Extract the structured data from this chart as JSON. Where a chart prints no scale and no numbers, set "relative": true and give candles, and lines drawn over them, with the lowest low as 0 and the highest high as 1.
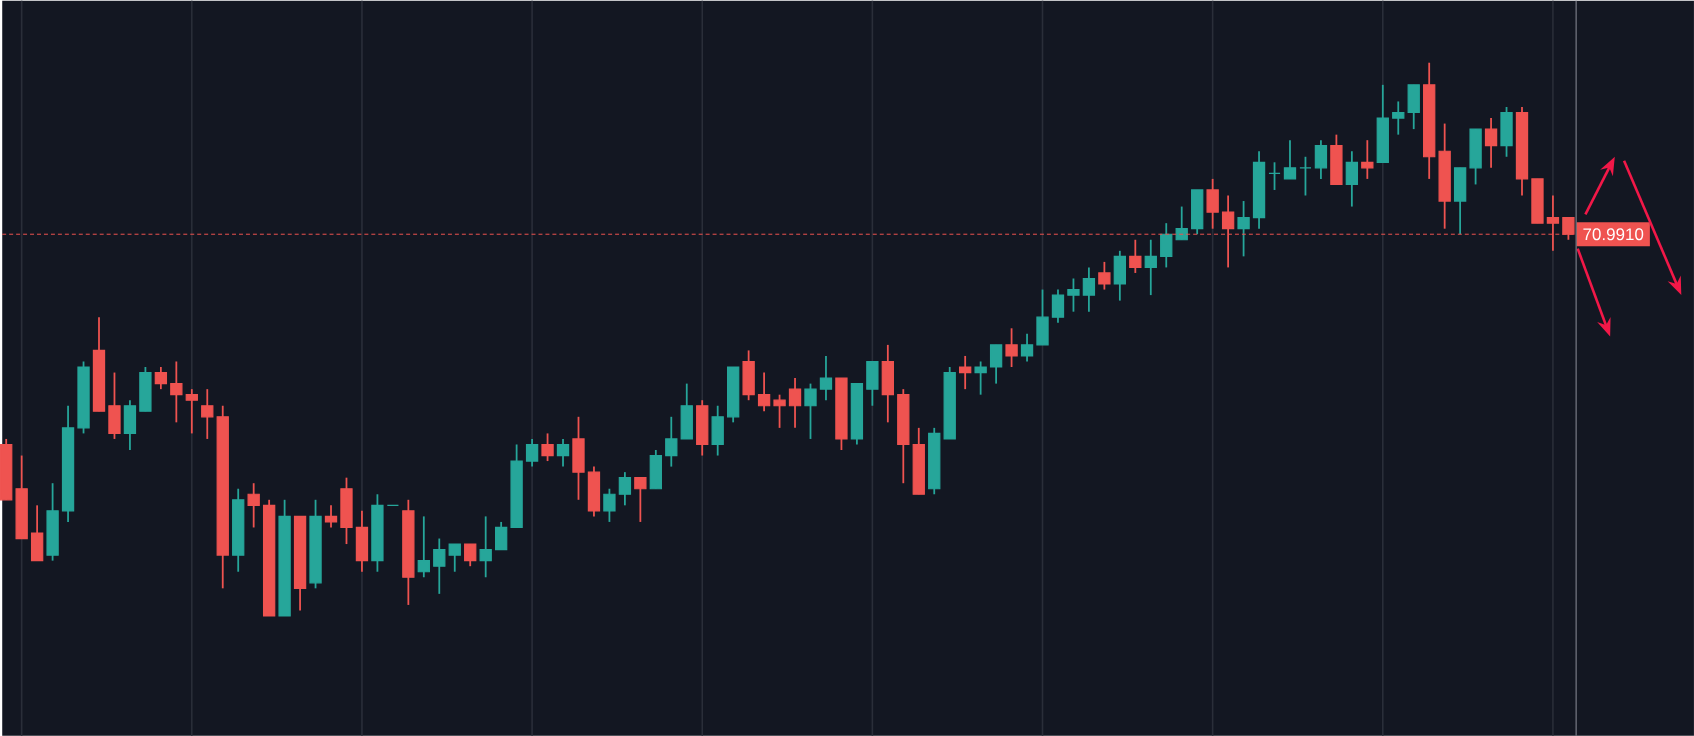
{
  "chart_data": {
    "type": "candlestick",
    "relative": true,
    "grid": "x",
    "categories": [
      null,
      null,
      null,
      null,
      null,
      null,
      null,
      null,
      null,
      null,
      null,
      null,
      null,
      null,
      null,
      null,
      null,
      null,
      null,
      null,
      null,
      null,
      null,
      null,
      null,
      null,
      null,
      null,
      null,
      null,
      null,
      null,
      null,
      null,
      null,
      null,
      null,
      null,
      null,
      null,
      null,
      null,
      null,
      null,
      null,
      null,
      null,
      null,
      null,
      null,
      null,
      null,
      null,
      null,
      null,
      null,
      null,
      null,
      null,
      null,
      null,
      null,
      null,
      null,
      null,
      null,
      null,
      null,
      null,
      null,
      null,
      null,
      null,
      null,
      null,
      null,
      null,
      null,
      null,
      null,
      null,
      null,
      null,
      null,
      null,
      null,
      null,
      null,
      null,
      null,
      null,
      null,
      null,
      null,
      null,
      null,
      null,
      null,
      null,
      null,
      null,
      null
    ],
    "ohlc": [
      [
        0.31,
        0.32,
        0.21,
        0.21
      ],
      [
        0.23,
        0.29,
        0.14,
        0.14
      ],
      [
        0.15,
        0.2,
        0.1,
        0.1
      ],
      [
        0.11,
        0.24,
        0.1,
        0.19
      ],
      [
        0.19,
        0.38,
        0.17,
        0.34
      ],
      [
        0.34,
        0.46,
        0.33,
        0.45
      ],
      [
        0.48,
        0.54,
        0.37,
        0.37
      ],
      [
        0.38,
        0.44,
        0.32,
        0.33
      ],
      [
        0.33,
        0.39,
        0.3,
        0.38
      ],
      [
        0.37,
        0.45,
        0.37,
        0.44
      ],
      [
        0.44,
        0.45,
        0.41,
        0.42
      ],
      [
        0.42,
        0.46,
        0.35,
        0.4
      ],
      [
        0.4,
        0.41,
        0.33,
        0.39
      ],
      [
        0.38,
        0.41,
        0.32,
        0.36
      ],
      [
        0.36,
        0.38,
        0.05,
        0.11
      ],
      [
        0.11,
        0.23,
        0.08,
        0.21
      ],
      [
        0.22,
        0.24,
        0.16,
        0.2
      ],
      [
        0.2,
        0.21,
        0,
        0
      ],
      [
        0.0,
        0.21,
        0,
        0.18
      ],
      [
        0.18,
        0.18,
        0.01,
        0.05
      ],
      [
        0.06,
        0.21,
        0.05,
        0.18
      ],
      [
        0.18,
        0.2,
        0.16,
        0.17
      ],
      [
        0.23,
        0.25,
        0.13,
        0.16
      ],
      [
        0.16,
        0.19,
        0.08,
        0.1
      ],
      [
        0.1,
        0.22,
        0.08,
        0.2
      ],
      [
        0.2,
        0.2,
        0.2,
        0.2
      ],
      [
        0.19,
        0.21,
        0.02,
        0.07
      ],
      [
        0.08,
        0.18,
        0.07,
        0.1
      ],
      [
        0.09,
        0.14,
        0.04,
        0.12
      ],
      [
        0.11,
        0.13,
        0.08,
        0.13
      ],
      [
        0.13,
        0.13,
        0.09,
        0.1
      ],
      [
        0.1,
        0.18,
        0.07,
        0.12
      ],
      [
        0.12,
        0.17,
        0.12,
        0.16
      ],
      [
        0.16,
        0.31,
        0.16,
        0.28
      ],
      [
        0.28,
        0.32,
        0.27,
        0.31
      ],
      [
        0.31,
        0.33,
        0.28,
        0.29
      ],
      [
        0.29,
        0.32,
        0.27,
        0.31
      ],
      [
        0.32,
        0.36,
        0.21,
        0.26
      ],
      [
        0.26,
        0.27,
        0.18,
        0.19
      ],
      [
        0.19,
        0.23,
        0.17,
        0.22
      ],
      [
        0.22,
        0.26,
        0.2,
        0.25
      ],
      [
        0.25,
        0.25,
        0.17,
        0.23
      ],
      [
        0.23,
        0.3,
        0.23,
        0.29
      ],
      [
        0.29,
        0.36,
        0.27,
        0.32
      ],
      [
        0.32,
        0.42,
        0.32,
        0.38
      ],
      [
        0.38,
        0.39,
        0.29,
        0.31
      ],
      [
        0.31,
        0.38,
        0.29,
        0.36
      ],
      [
        0.36,
        0.45,
        0.35,
        0.45
      ],
      [
        0.46,
        0.48,
        0.39,
        0.4
      ],
      [
        0.4,
        0.44,
        0.37,
        0.38
      ],
      [
        0.39,
        0.4,
        0.34,
        0.38
      ],
      [
        0.41,
        0.43,
        0.34,
        0.38
      ],
      [
        0.38,
        0.42,
        0.32,
        0.41
      ],
      [
        0.41,
        0.47,
        0.39,
        0.43
      ],
      [
        0.43,
        0.43,
        0.3,
        0.32
      ],
      [
        0.32,
        0.42,
        0.31,
        0.42
      ],
      [
        0.41,
        0.46,
        0.38,
        0.46
      ],
      [
        0.46,
        0.49,
        0.35,
        0.4
      ],
      [
        0.4,
        0.41,
        0.24,
        0.31
      ],
      [
        0.31,
        0.34,
        0.22,
        0.22
      ],
      [
        0.23,
        0.34,
        0.22,
        0.33
      ],
      [
        0.32,
        0.45,
        0.32,
        0.44
      ],
      [
        0.45,
        0.47,
        0.41,
        0.44
      ],
      [
        0.44,
        0.46,
        0.4,
        0.45
      ],
      [
        0.45,
        0.49,
        0.42,
        0.49
      ],
      [
        0.49,
        0.52,
        0.45,
        0.47
      ],
      [
        0.47,
        0.51,
        0.46,
        0.49
      ],
      [
        0.49,
        0.59,
        0.49,
        0.54
      ],
      [
        0.54,
        0.59,
        0.53,
        0.58
      ],
      [
        0.58,
        0.61,
        0.55,
        0.59
      ],
      [
        0.58,
        0.63,
        0.55,
        0.61
      ],
      [
        0.62,
        0.64,
        0.59,
        0.6
      ],
      [
        0.6,
        0.66,
        0.57,
        0.65
      ],
      [
        0.65,
        0.68,
        0.62,
        0.63
      ],
      [
        0.63,
        0.68,
        0.58,
        0.65
      ],
      [
        0.65,
        0.71,
        0.63,
        0.69
      ],
      [
        0.68,
        0.74,
        0.68,
        0.7
      ],
      [
        0.7,
        0.77,
        0.69,
        0.77
      ],
      [
        0.77,
        0.79,
        0.7,
        0.73
      ],
      [
        0.73,
        0.76,
        0.63,
        0.7
      ],
      [
        0.7,
        0.75,
        0.65,
        0.72
      ],
      [
        0.72,
        0.84,
        0.7,
        0.82
      ],
      [
        0.8,
        0.82,
        0.77,
        0.8
      ],
      [
        0.79,
        0.86,
        0.79,
        0.81
      ],
      [
        0.81,
        0.83,
        0.76,
        0.81
      ],
      [
        0.81,
        0.86,
        0.79,
        0.85
      ],
      [
        0.85,
        0.87,
        0.78,
        0.78
      ],
      [
        0.78,
        0.84,
        0.74,
        0.82
      ],
      [
        0.82,
        0.86,
        0.79,
        0.81
      ],
      [
        0.82,
        0.96,
        0.82,
        0.9
      ],
      [
        0.9,
        0.93,
        0.87,
        0.91
      ],
      [
        0.91,
        0.96,
        0.88,
        0.96
      ],
      [
        0.96,
        1,
        0.79,
        0.83
      ],
      [
        0.84,
        0.89,
        0.7,
        0.75
      ],
      [
        0.75,
        0.81,
        0.69,
        0.81
      ],
      [
        0.81,
        0.88,
        0.78,
        0.88
      ],
      [
        0.88,
        0.9,
        0.81,
        0.85
      ],
      [
        0.85,
        0.92,
        0.83,
        0.91
      ],
      [
        0.91,
        0.92,
        0.76,
        0.79
      ],
      [
        0.79,
        0.79,
        0.71,
        0.71
      ],
      [
        0.72,
        0.76,
        0.66,
        0.71
      ],
      [
        0.72,
        0.72,
        0.68,
        0.69
      ]
    ],
    "colors": [
      "#ef5350",
      "#ef5350",
      "#ef5350",
      "#26a69a",
      "#26a69a",
      "#26a69a",
      "#ef5350",
      "#ef5350",
      "#26a69a",
      "#26a69a",
      "#ef5350",
      "#ef5350",
      "#ef5350",
      "#ef5350",
      "#ef5350",
      "#26a69a",
      "#ef5350",
      "#ef5350",
      "#26a69a",
      "#ef5350",
      "#26a69a",
      "#ef5350",
      "#ef5350",
      "#ef5350",
      "#26a69a",
      "#26a69a",
      "#ef5350",
      "#26a69a",
      "#26a69a",
      "#26a69a",
      "#ef5350",
      "#26a69a",
      "#26a69a",
      "#26a69a",
      "#26a69a",
      "#ef5350",
      "#26a69a",
      "#ef5350",
      "#ef5350",
      "#26a69a",
      "#26a69a",
      "#ef5350",
      "#26a69a",
      "#26a69a",
      "#26a69a",
      "#ef5350",
      "#26a69a",
      "#26a69a",
      "#ef5350",
      "#ef5350",
      "#ef5350",
      "#ef5350",
      "#26a69a",
      "#26a69a",
      "#ef5350",
      "#26a69a",
      "#26a69a",
      "#ef5350",
      "#ef5350",
      "#ef5350",
      "#26a69a",
      "#26a69a",
      "#ef5350",
      "#26a69a",
      "#26a69a",
      "#ef5350",
      "#26a69a",
      "#26a69a",
      "#26a69a",
      "#26a69a",
      "#26a69a",
      "#ef5350",
      "#26a69a",
      "#ef5350",
      "#26a69a",
      "#26a69a",
      "#26a69a",
      "#26a69a",
      "#ef5350",
      "#ef5350",
      "#26a69a",
      "#26a69a",
      "#26a69a",
      "#26a69a",
      "#26a69a",
      "#26a69a",
      "#ef5350",
      "#26a69a",
      "#ef5350",
      "#26a69a",
      "#26a69a",
      "#26a69a",
      "#ef5350",
      "#ef5350",
      "#26a69a",
      "#26a69a",
      "#ef5350",
      "#26a69a",
      "#ef5350",
      "#ef5350",
      "#ef5350",
      "#ef5350"
    ],
    "ref_lines": [
      {
        "axis": "y",
        "value": 0.69,
        "color": "#ef5350",
        "line_style": "dashed"
      }
    ],
    "annotations": [
      "70.9910"
    ]
  }
}
